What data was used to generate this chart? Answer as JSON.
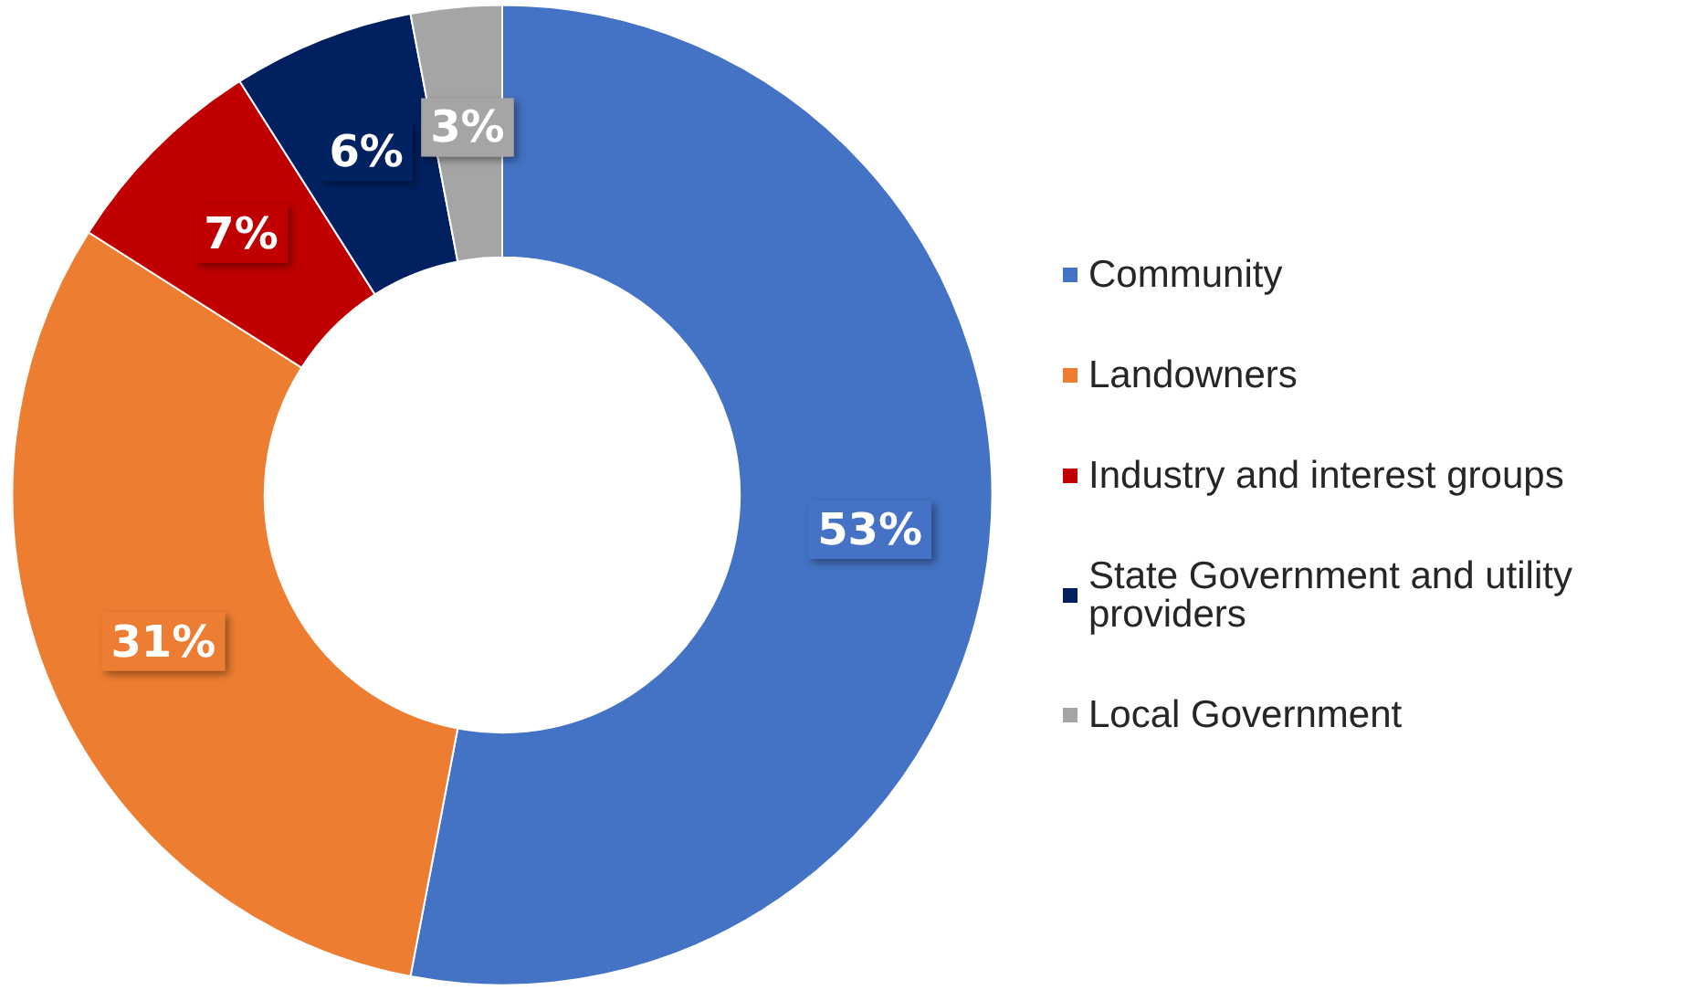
{
  "chart_data": {
    "type": "donut",
    "categories": [
      "Community",
      "Landowners",
      "Industry and interest groups",
      "State Government and utility providers",
      "Local Government"
    ],
    "values": [
      53,
      31,
      7,
      6,
      3
    ],
    "colors": [
      "#4472c4",
      "#ed7d31",
      "#c00000",
      "#002060",
      "#a5a5a5"
    ],
    "value_labels": [
      "53%",
      "31%",
      "7%",
      "6%",
      "3%"
    ],
    "legend": "right"
  }
}
